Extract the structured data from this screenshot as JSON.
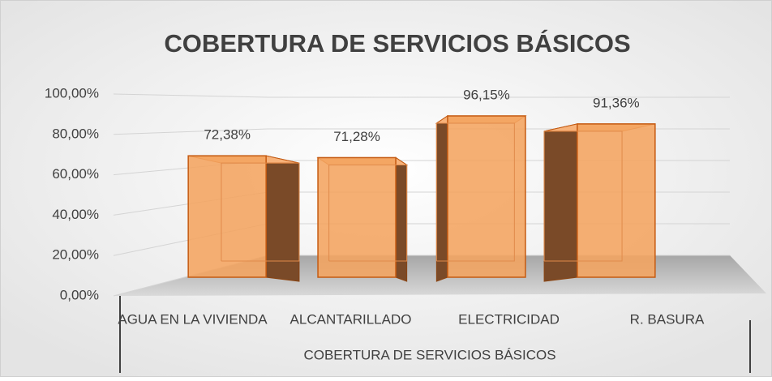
{
  "chart_data": {
    "type": "bar3d",
    "title": "COBERTURA DE SERVICIOS BÁSICOS",
    "categories": [
      "AGUA EN LA VIVIENDA",
      "ALCANTARILLADO",
      "ELECTRICIDAD",
      "R. BASURA"
    ],
    "values": [
      72.38,
      71.28,
      96.15,
      91.36
    ],
    "value_labels": [
      "72,38%",
      "71,28%",
      "96,15%",
      "91,36%"
    ],
    "color": "#f4a460",
    "x_label": "COBERTURA DE SERVICIOS BÁSICOS",
    "ylim": [
      0,
      100
    ],
    "yticks": [
      {
        "value": 0,
        "label": "0,00%"
      },
      {
        "value": 20,
        "label": "20,00%"
      },
      {
        "value": 40,
        "label": "40,00%"
      },
      {
        "value": 60,
        "label": "60,00%"
      },
      {
        "value": 80,
        "label": "80,00%"
      },
      {
        "value": 100,
        "label": "100,00%"
      }
    ],
    "grid": true
  }
}
